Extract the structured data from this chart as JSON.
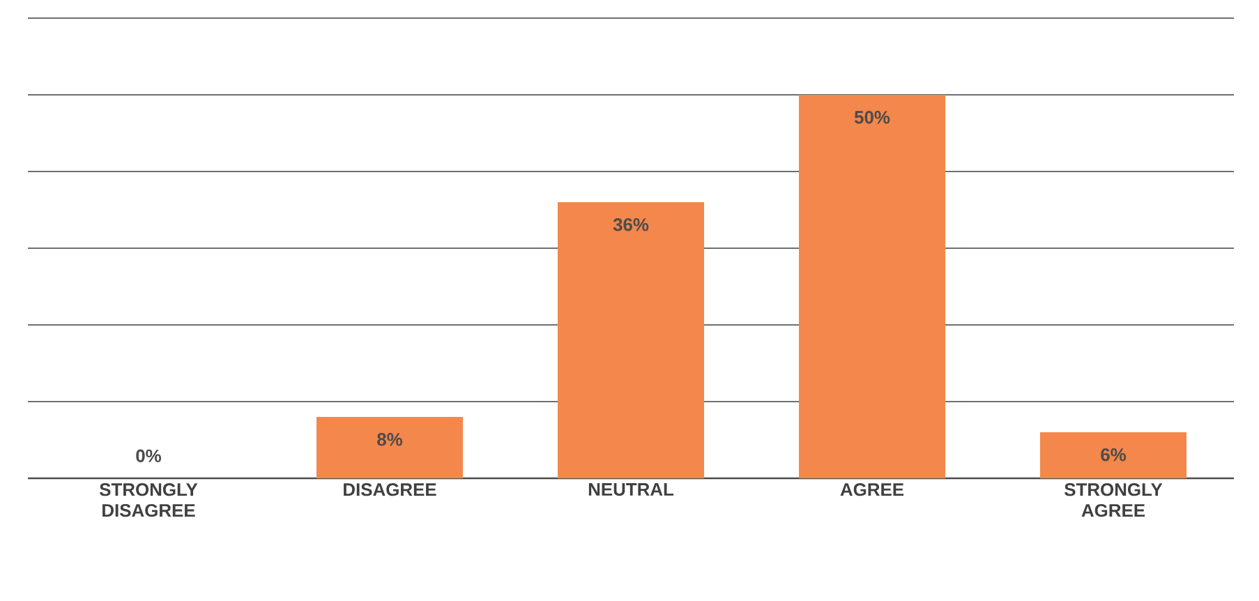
{
  "chart_data": {
    "type": "bar",
    "categories": [
      "STRONGLY DISAGREE",
      "DISAGREE",
      "NEUTRAL",
      "AGREE",
      "STRONGLY AGREE"
    ],
    "values": [
      0,
      8,
      36,
      50,
      6
    ],
    "value_labels": [
      "0%",
      "8%",
      "36%",
      "50%",
      "6%"
    ],
    "color": "#f4874b",
    "relative": false,
    "ylim": [
      0,
      60
    ],
    "yticks": [
      {
        "value": 0,
        "label": null
      },
      {
        "value": 10,
        "label": null
      },
      {
        "value": 20,
        "label": null
      },
      {
        "value": 30,
        "label": null
      },
      {
        "value": 40,
        "label": null
      },
      {
        "value": 50,
        "label": null
      },
      {
        "value": 60,
        "label": null
      }
    ],
    "grid": "y",
    "tick_labels": "x"
  }
}
